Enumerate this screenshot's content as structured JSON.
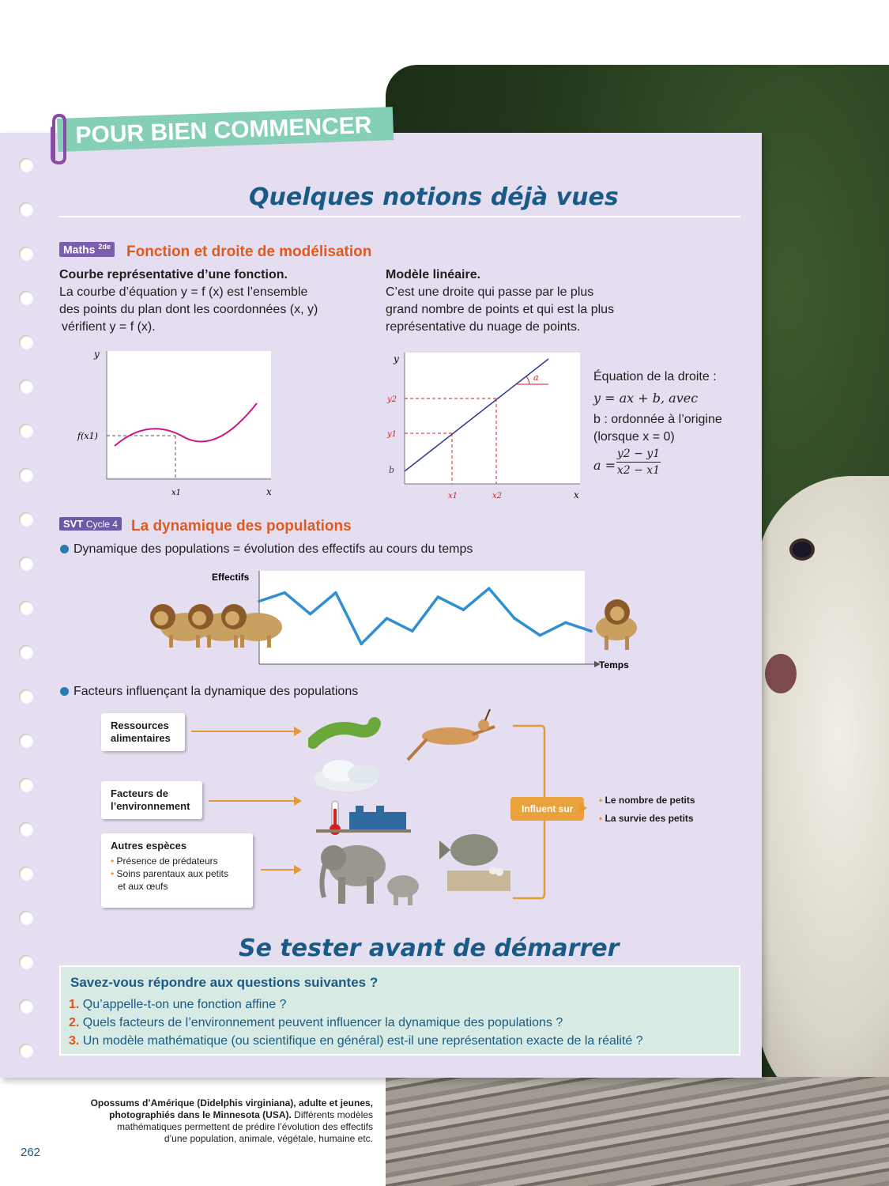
{
  "banner": "POUR BIEN COMMENCER",
  "section_title": "Quelques notions déjà vues",
  "maths": {
    "tag": "Maths",
    "tag_sup": "2de",
    "title": "Fonction et droite de modélisation",
    "left_heading": "Courbe représentative d’une fonction.",
    "left_text_1": "La courbe d’équation y = f (x) est l’ensemble",
    "left_text_2": "des points du plan dont les coordonnées (x, y)",
    "left_text_3": "vérifient y = f (x).",
    "right_heading": "Modèle linéaire.",
    "right_text_1": "C’est une droite qui passe par le plus",
    "right_text_2": "grand nombre de points et qui est la plus",
    "right_text_3": "représentative du nuage de points.",
    "graph1": {
      "ylabel": "y",
      "xlabel": "x",
      "fx": "f(x1)",
      "x1": "x1"
    },
    "graph2": {
      "ylabel": "y",
      "xlabel": "x",
      "a": "a",
      "y2": "y2",
      "y1": "y1",
      "b": "b",
      "x1": "x1",
      "x2": "x2"
    },
    "eq_1": "Équation de la droite :",
    "eq_2": "y = ax + b, avec",
    "eq_3": "b : ordonnée à l’origine",
    "eq_4": "(lorsque x = 0)",
    "eq_a": "a =",
    "eq_num": "y2 − y1",
    "eq_den": "x2 − x1"
  },
  "svt": {
    "tag": "SVT",
    "tag_cycle": "Cycle 4",
    "title": "La dynamique des populations",
    "bullet_1": "Dynamique des populations = évolution des effectifs au cours du temps",
    "chart_ylabel": "Effectifs",
    "chart_xlabel": "Temps",
    "bullet_2": "Facteurs influençant la dynamique des populations",
    "box_1": "Ressources alimentaires",
    "box_2_l1": "Facteurs de",
    "box_2_l2": "l’environnement",
    "box_3_title": "Autres espèces",
    "box_3_item_1": "Présence de prédateurs",
    "box_3_item_2a": "Soins parentaux aux petits",
    "box_3_item_2b": "et aux œufs",
    "influent": "Influent sur",
    "result_1": "Le nombre de petits",
    "result_2": "La survie des petits"
  },
  "chart_data": {
    "type": "line",
    "xlabel": "Temps",
    "ylabel": "Effectifs",
    "x": [
      0,
      1,
      2,
      3,
      4,
      5,
      6,
      7,
      8,
      9,
      10,
      11,
      12,
      13
    ],
    "values": [
      70,
      80,
      55,
      80,
      20,
      50,
      35,
      75,
      60,
      85,
      50,
      30,
      45,
      35
    ]
  },
  "test": {
    "title": "Se tester avant de démarrer",
    "question_header": "Savez-vous répondre aux questions suivantes ?",
    "questions": [
      {
        "num": "1.",
        "text": "Qu’appelle-t-on une fonction affine ?"
      },
      {
        "num": "2.",
        "text": "Quels facteurs de l’environnement peuvent influencer la dynamique des populations ?"
      },
      {
        "num": "3.",
        "text": "Un modèle mathématique (ou scientifique en général) est-il une représentation exacte de la réalité ?"
      }
    ]
  },
  "caption": {
    "bold_1": "Opossums d’Amérique (Didelphis virginiana), adulte et jeunes,",
    "bold_2": "photographiés dans le Minnesota (USA).",
    "rest_2": " Différents modèles",
    "line_3": "mathématiques permettent de prédire l’évolution des effectifs",
    "line_4": "d’une population, animale, végétale, humaine etc."
  },
  "page_number": "262",
  "colors": {
    "accent_blue": "#1a5a86",
    "orange": "#e05a1e",
    "sheet": "#e5def0",
    "banner": "#84cfb6",
    "curve_line": "#2f8fd0"
  }
}
